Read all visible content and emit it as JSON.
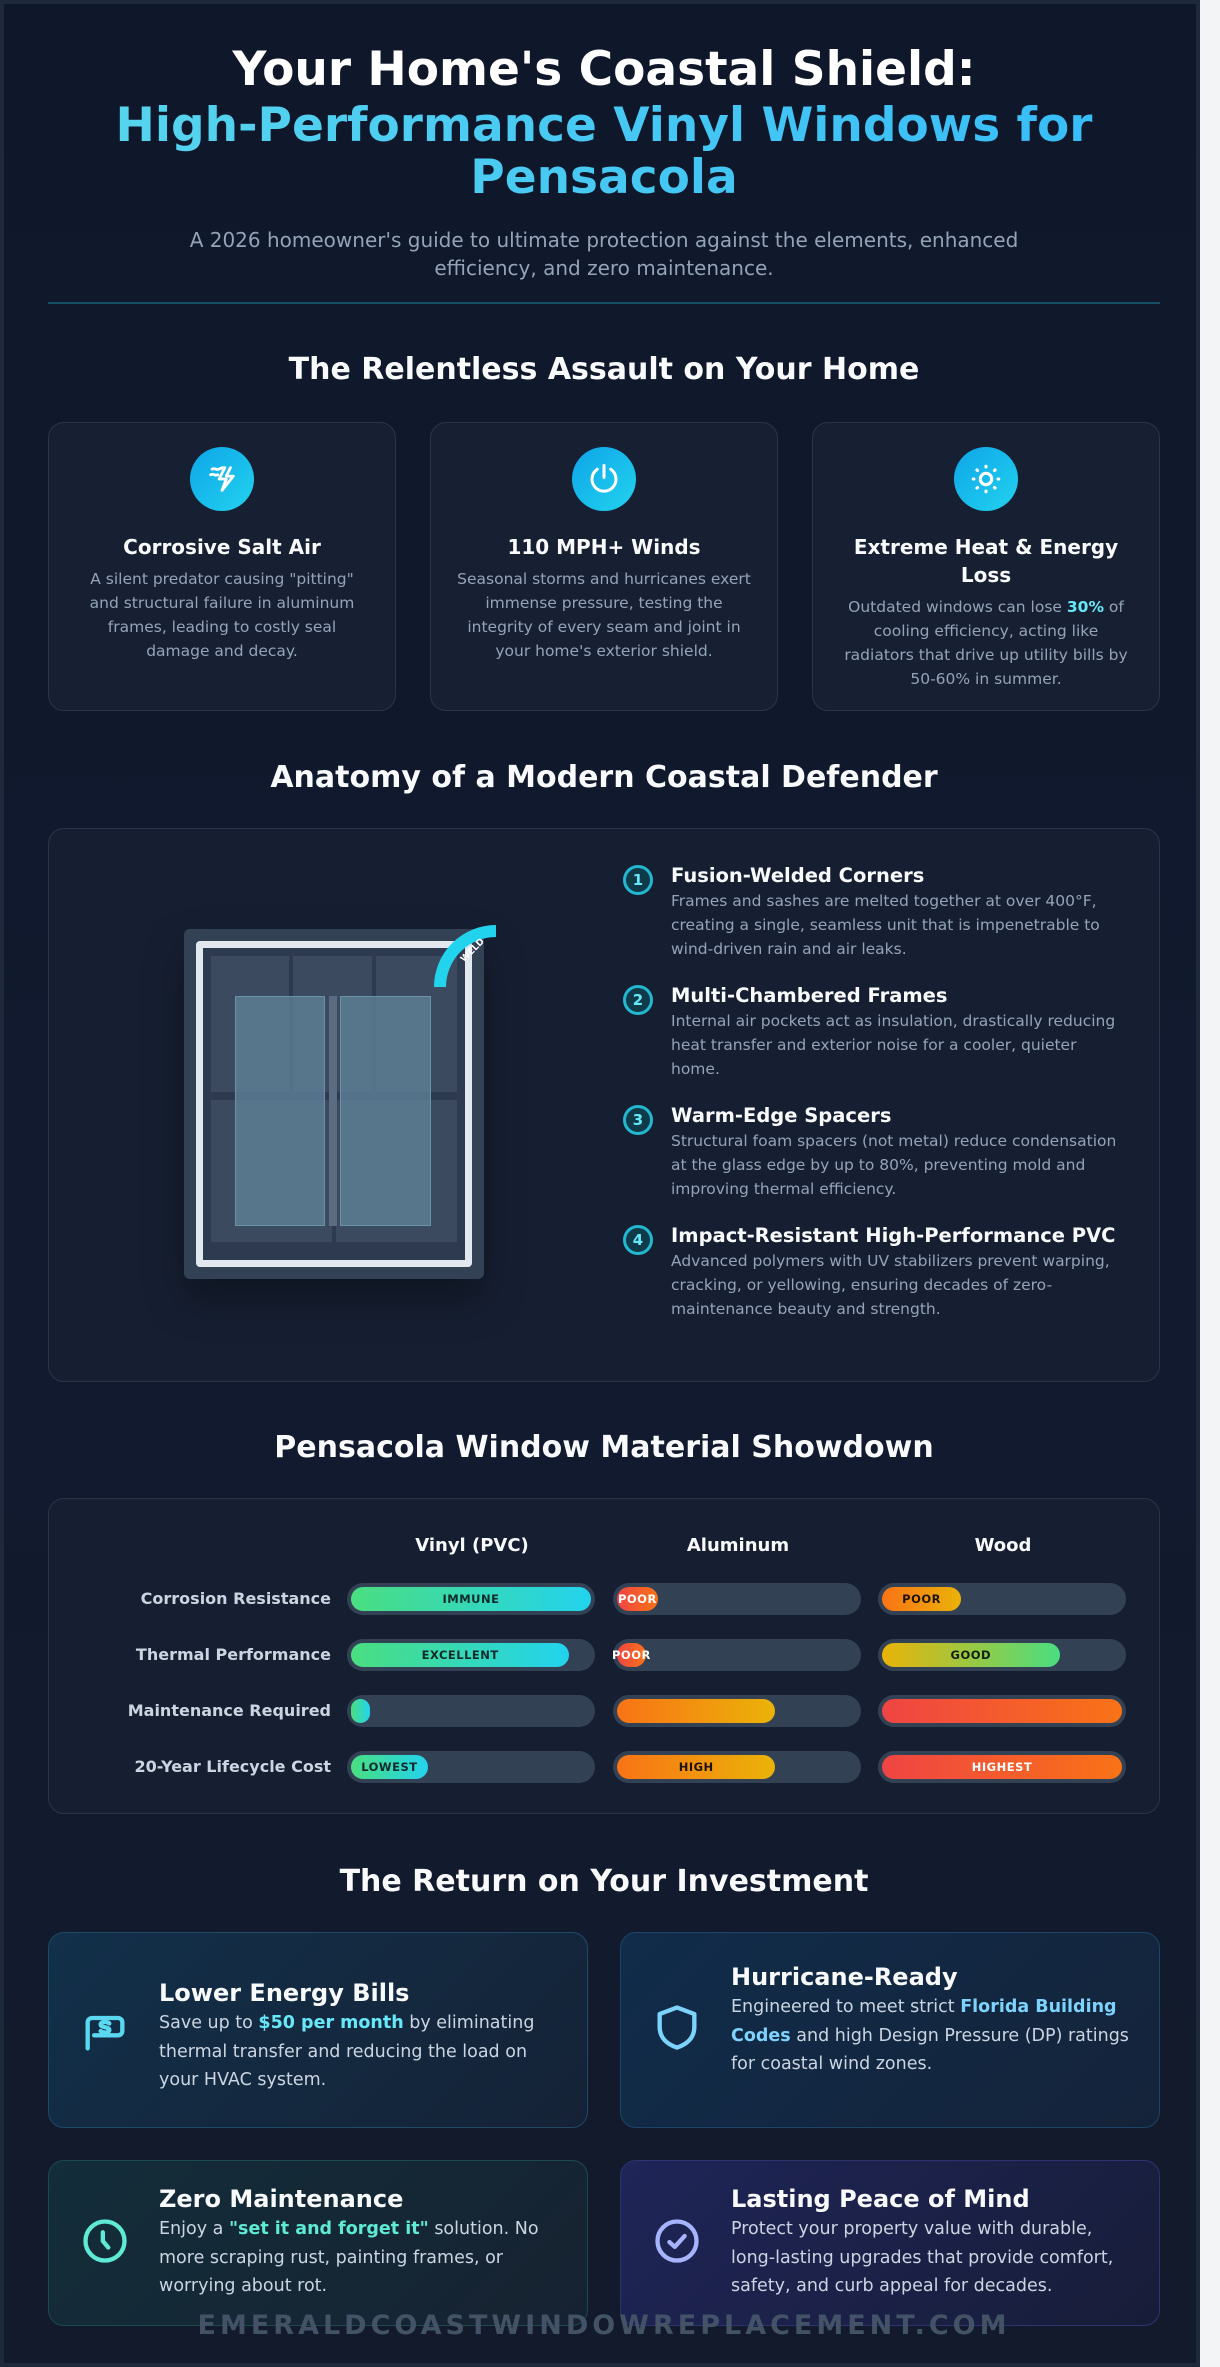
{
  "header": {
    "title_line1": "Your Home's Coastal Shield:",
    "title_line2": "High-Performance Vinyl Windows for Pensacola",
    "subtitle": "A 2026 homeowner's guide to ultimate protection against the elements, enhanced efficiency, and zero maintenance."
  },
  "threats": {
    "title": "The Relentless Assault on Your Home",
    "cards": [
      {
        "icon": "salt-storm-icon",
        "title": "Corrosive Salt Air",
        "text": "A silent predator causing \"pitting\" and structural failure in aluminum frames, leading to costly seal damage and decay."
      },
      {
        "icon": "power-wind-icon",
        "title": "110 MPH+ Winds",
        "text": "Seasonal storms and hurricanes exert immense pressure, testing the integrity of every seam and joint in your home's exterior shield."
      },
      {
        "icon": "sun-icon",
        "title": "Extreme Heat & Energy Loss",
        "text_before": "Outdated windows can lose ",
        "text_highlight": "30%",
        "text_after": " of cooling efficiency, acting like radiators that drive up utility bills by 50-60% in summer."
      }
    ]
  },
  "anatomy": {
    "title": "Anatomy of a Modern Coastal Defender",
    "weld_label": "WELD",
    "features": [
      {
        "num": "1",
        "title": "Fusion-Welded Corners",
        "text": "Frames and sashes are melted together at over 400°F, creating a single, seamless unit that is impenetrable to wind-driven rain and air leaks."
      },
      {
        "num": "2",
        "title": "Multi-Chambered Frames",
        "text": "Internal air pockets act as insulation, drastically reducing heat transfer and exterior noise for a cooler, quieter home."
      },
      {
        "num": "3",
        "title": "Warm-Edge Spacers",
        "text": "Structural foam spacers (not metal) reduce condensation at the glass edge by up to 80%, preventing mold and improving thermal efficiency."
      },
      {
        "num": "4",
        "title": "Impact-Resistant High-Performance PVC",
        "text": "Advanced polymers with UV stabilizers prevent warping, cracking, or yellowing, ensuring decades of zero-maintenance beauty and strength."
      }
    ]
  },
  "showdown": {
    "title": "Pensacola Window Material Showdown",
    "columns": [
      "Vinyl (PVC)",
      "Aluminum",
      "Wood"
    ],
    "rows": [
      {
        "label": "Corrosion Resistance",
        "cells": [
          {
            "pct": 100,
            "label": "IMMUNE",
            "scheme": "green"
          },
          {
            "pct": 17,
            "label": "POOR",
            "scheme": "red"
          },
          {
            "pct": 33,
            "label": "POOR",
            "scheme": "orange"
          }
        ]
      },
      {
        "label": "Thermal Performance",
        "cells": [
          {
            "pct": 91,
            "label": "EXCELLENT",
            "scheme": "green"
          },
          {
            "pct": 12,
            "label": "POOR",
            "scheme": "red"
          },
          {
            "pct": 74,
            "label": "GOOD",
            "scheme": "yellowgreen"
          }
        ]
      },
      {
        "label": "Maintenance Required",
        "cells": [
          {
            "pct": 6,
            "label": "",
            "scheme": "green"
          },
          {
            "pct": 66,
            "label": "",
            "scheme": "orange"
          },
          {
            "pct": 100,
            "label": "",
            "scheme": "redorange"
          }
        ]
      },
      {
        "label": "20-Year Lifecycle Cost",
        "cells": [
          {
            "pct": 32,
            "label": "LOWEST",
            "scheme": "green"
          },
          {
            "pct": 66,
            "label": "HIGH",
            "scheme": "orange"
          },
          {
            "pct": 100,
            "label": "HIGHEST",
            "scheme": "redorange"
          }
        ]
      }
    ]
  },
  "roi": {
    "title": "The Return on Your Investment",
    "cards": [
      {
        "icon": "money-chat-icon",
        "title": "Lower Energy Bills",
        "text_before": "Save up to ",
        "text_highlight": "$50 per month",
        "text_after": " by eliminating thermal transfer and reducing the load on your HVAC system."
      },
      {
        "icon": "shield-icon",
        "title": "Hurricane-Ready",
        "text_before": "Engineered to meet strict ",
        "text_highlight": "Florida Building Codes",
        "text_after": " and high Design Pressure (DP) ratings for coastal wind zones."
      },
      {
        "icon": "clock-icon",
        "title": "Zero Maintenance",
        "text_before": "Enjoy a ",
        "text_highlight": "\"set it and forget it\"",
        "text_after": " solution. No more scraping rust, painting frames, or worrying about rot."
      },
      {
        "icon": "check-circle-icon",
        "title": "Lasting Peace of Mind",
        "text": "Protect your property value with durable, long-lasting upgrades that provide comfort, safety, and curb appeal for decades."
      }
    ]
  },
  "footer": {
    "watermark": "EMERALDCOASTWINDOWREPLACEMENT.COM"
  },
  "colors": {
    "background": "#0f172a",
    "card": "#172033",
    "accent_cyan": "#22d3ee",
    "accent_green": "#4ade80",
    "accent_orange": "#f97316",
    "accent_red": "#ef4444",
    "accent_yellow": "#eab308"
  }
}
